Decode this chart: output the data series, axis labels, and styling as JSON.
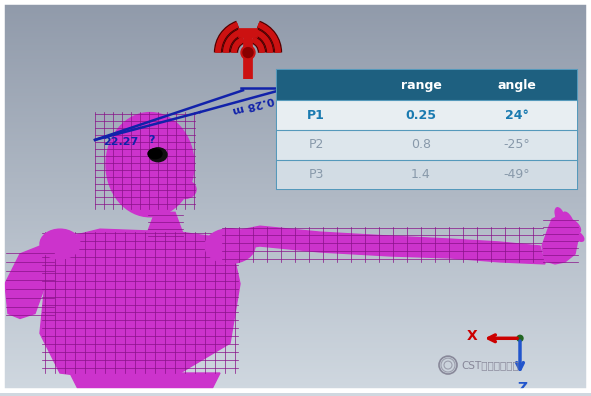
{
  "bg_top": "#d0d8e0",
  "bg_bottom": "#909aaa",
  "table_header_bg": "#1e6080",
  "table_header_text": "#ffffff",
  "table_row_bg": [
    "#e8eef2",
    "#dde6ec",
    "#d2dce4"
  ],
  "table_text_p1": "#1a7ab0",
  "table_text_inactive": "#8899aa",
  "table_border": "#5599bb",
  "headers": [
    "",
    "range",
    "angle"
  ],
  "rows": [
    [
      "P1",
      "0.25",
      "24°"
    ],
    [
      "P2",
      "0.8",
      "-25°"
    ],
    [
      "P3",
      "1.4",
      "-49°"
    ]
  ],
  "beam_color": "#1122aa",
  "annotation_22": "22.27",
  "annotation_028": "0.28 m",
  "human_fill": "#cc33cc",
  "human_mesh": "#881188",
  "antenna_red": "#cc1111",
  "axis_x_color": "#cc0000",
  "axis_z_color": "#2255cc",
  "axis_origin_color": "#226622",
  "watermark_color": "#888899"
}
